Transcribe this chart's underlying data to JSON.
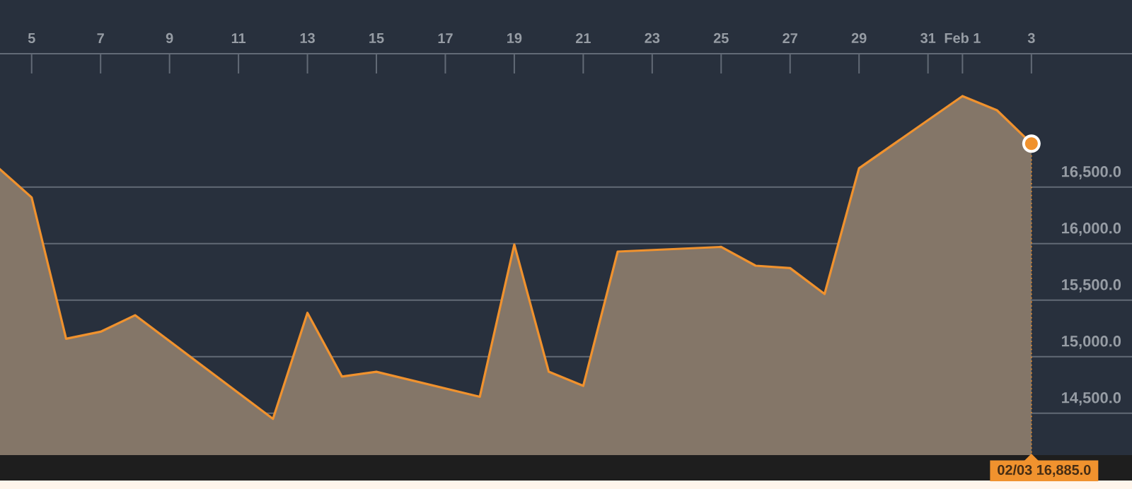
{
  "chart_data": {
    "type": "area",
    "x": [
      "--01-04",
      "--01-05",
      "--01-06",
      "--01-07",
      "--01-08",
      "--01-12",
      "--01-13",
      "--01-14",
      "--01-15",
      "--01-18",
      "--01-19",
      "--01-20",
      "--01-21",
      "--01-22",
      "--01-25",
      "--01-26",
      "--01-27",
      "--01-28",
      "--01-29",
      "--02-01",
      "--02-02",
      "--02-03"
    ],
    "series": [
      {
        "color": "#f0922e",
        "values": [
          16680,
          16409,
          15159,
          15221,
          15367,
          14450,
          15388,
          14825,
          14867,
          14646,
          15992,
          14867,
          14742,
          15930,
          15971,
          15805,
          15784,
          15555,
          16667,
          17305,
          17180,
          16885
        ]
      }
    ],
    "xlim": [
      "--01-04",
      "--02-06"
    ],
    "xticks": [
      {
        "value": "--01-05",
        "label": "5"
      },
      {
        "value": "--01-07",
        "label": "7"
      },
      {
        "value": "--01-09",
        "label": "9"
      },
      {
        "value": "--01-11",
        "label": "11"
      },
      {
        "value": "--01-13",
        "label": "13"
      },
      {
        "value": "--01-15",
        "label": "15"
      },
      {
        "value": "--01-17",
        "label": "17"
      },
      {
        "value": "--01-19",
        "label": "19"
      },
      {
        "value": "--01-21",
        "label": "21"
      },
      {
        "value": "--01-23",
        "label": "23"
      },
      {
        "value": "--01-25",
        "label": "25"
      },
      {
        "value": "--01-27",
        "label": "27"
      },
      {
        "value": "--01-29",
        "label": "29"
      },
      {
        "value": "--01-31",
        "label": "31"
      },
      {
        "value": "--02-01",
        "label": "Feb 1"
      },
      {
        "value": "--02-03",
        "label": "3"
      }
    ],
    "ylim": [
      14130,
      17680
    ],
    "yticks": [
      {
        "value": 14500,
        "label": "14,500.0"
      },
      {
        "value": 15000,
        "label": "15,000.0"
      },
      {
        "value": 15500,
        "label": "15,500.0"
      },
      {
        "value": 16000,
        "label": "16,000.0"
      },
      {
        "value": 16500,
        "label": "16,500.0"
      }
    ],
    "grid": "y",
    "annotations": [
      {
        "text": "02/03 16,885.0",
        "x": "--02-03",
        "y": 16885
      }
    ]
  }
}
